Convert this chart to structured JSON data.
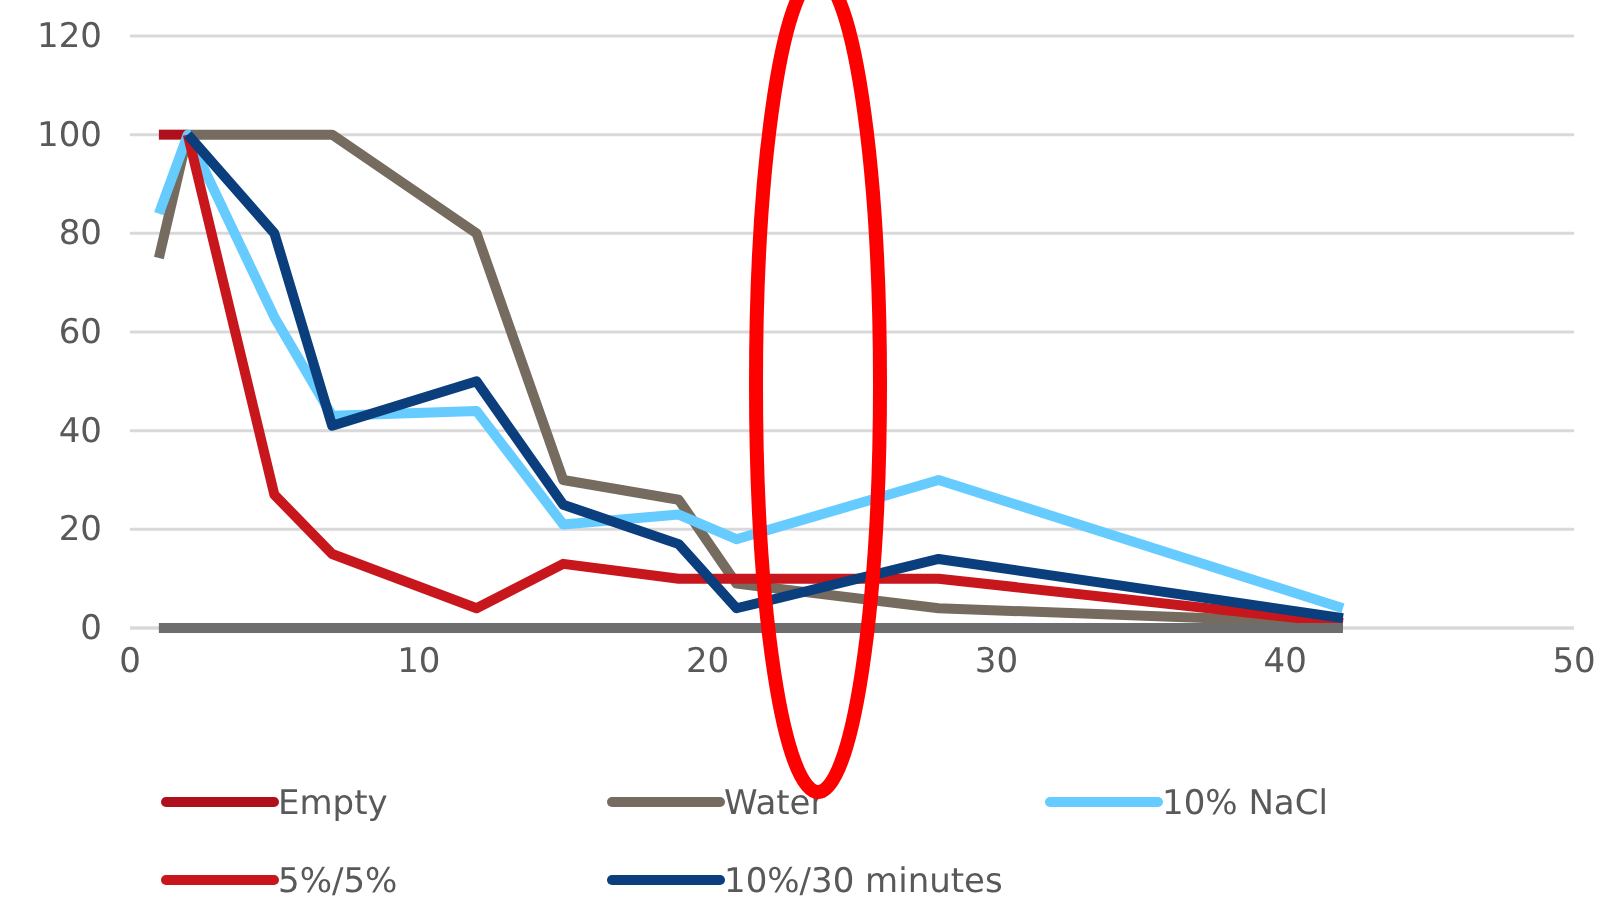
{
  "chart_data": {
    "type": "line",
    "xlim": [
      0,
      50
    ],
    "xticks": [
      0,
      10,
      20,
      30,
      40,
      50
    ],
    "ylim": [
      0,
      120
    ],
    "yticks": [
      0,
      20,
      40,
      60,
      80,
      100,
      120
    ],
    "grid": "y",
    "legend": "bottom",
    "marker": "none",
    "line_style": "solid",
    "series": [
      {
        "name": "Empty",
        "color": "#b0101e",
        "x": [
          1,
          2
        ],
        "values": [
          100,
          100
        ]
      },
      {
        "name": "Water",
        "color": "#756b5f",
        "x": [
          1,
          2,
          7,
          12,
          15,
          19,
          21,
          28,
          42
        ],
        "values": [
          75,
          100,
          100,
          80,
          30,
          26,
          9,
          4,
          1
        ]
      },
      {
        "name": "10% NaCl",
        "color": "#66ccff",
        "x": [
          1,
          2,
          5,
          7,
          12,
          15,
          19,
          21,
          28,
          42
        ],
        "values": [
          84,
          100,
          63,
          43,
          44,
          21,
          23,
          18,
          30,
          4
        ]
      },
      {
        "name": "5%/5%",
        "color": "#c8161d",
        "x": [
          2,
          5,
          7,
          12,
          15,
          19,
          21,
          28,
          42
        ],
        "values": [
          100,
          27,
          15,
          4,
          13,
          10,
          10,
          10,
          1
        ]
      },
      {
        "name": "10%/30 minutes",
        "color": "#0b3e7c",
        "x": [
          2,
          5,
          7,
          12,
          15,
          19,
          21,
          28,
          42
        ],
        "values": [
          100,
          80,
          41,
          50,
          25,
          17,
          4,
          14,
          2
        ]
      },
      {
        "color": "#6d6d6d",
        "x": [
          1,
          2,
          5,
          7,
          12,
          15,
          19,
          21,
          28,
          42
        ],
        "values": [
          0,
          0,
          0,
          0,
          0,
          0,
          0,
          0,
          0,
          0
        ]
      }
    ]
  }
}
